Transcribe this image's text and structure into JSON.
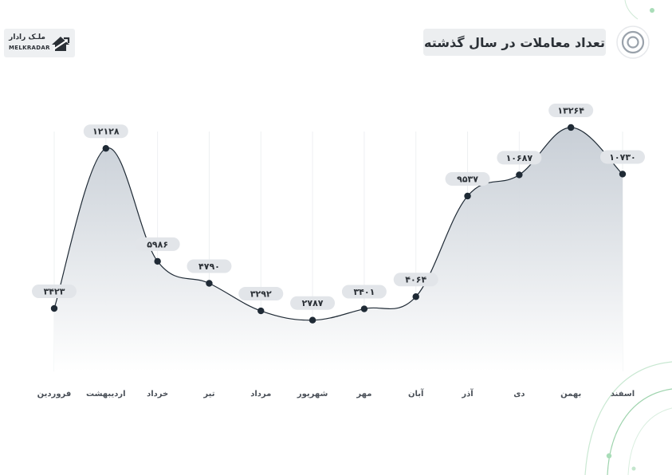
{
  "header": {
    "title": "تعداد معاملات در سال گذشته"
  },
  "logo": {
    "name_fa": "ملـک رادار",
    "name_en": "MELKRADAR"
  },
  "icons": {
    "title_icon": "concentric-circles-icon",
    "logo_icon": "house-arrow-icon"
  },
  "colors": {
    "line": "#1f2a35",
    "marker": "#1f2a35",
    "label_bg": "#e2e5e9",
    "area_top": "#c5ccd4",
    "area_bottom": "#ffffff",
    "accent_green": "#8fd4a0"
  },
  "chart_data": {
    "type": "area",
    "title": "تعداد معاملات در سال گذشته",
    "categories": [
      "فروردین",
      "اردیبهشت",
      "خرداد",
      "تیر",
      "مرداد",
      "شهریور",
      "مهر",
      "آبان",
      "آذر",
      "دی",
      "بهمن",
      "اسفند"
    ],
    "values": [
      3423,
      12128,
      5986,
      4790,
      3292,
      2787,
      3401,
      4064,
      9537,
      10687,
      13264,
      10730
    ],
    "data_labels": [
      "۳۴۲۳",
      "۱۲۱۲۸",
      "۵۹۸۶",
      "۴۷۹۰",
      "۳۲۹۲",
      "۲۷۸۷",
      "۳۴۰۱",
      "۴۰۶۴",
      "۹۵۳۷",
      "۱۰۶۸۷",
      "۱۳۲۶۴",
      "۱۰۷۳۰"
    ],
    "xlabel": "",
    "ylabel": "",
    "ylim": [
      0,
      14000
    ],
    "grid": "vertical",
    "legend": "none"
  }
}
